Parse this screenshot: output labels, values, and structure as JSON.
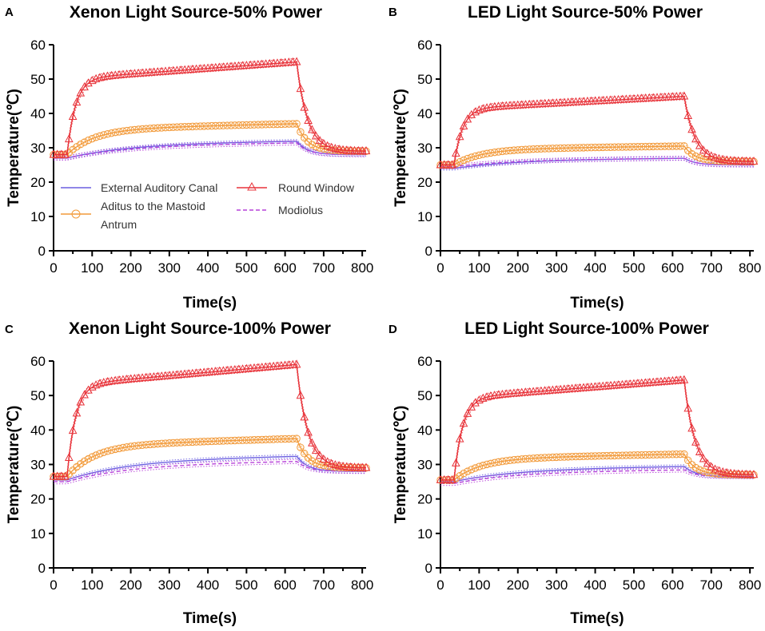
{
  "figure": {
    "description_panels": [
      "A",
      "B",
      "C",
      "D"
    ]
  },
  "colors": {
    "external_auditory_canal": "#6b5fe0",
    "aditus": "#f29a3a",
    "round_window": "#e8343b",
    "modiolus": "#b640d8",
    "axis": "#000000"
  },
  "legend": {
    "placement": "inside panel A, center-left",
    "entries": [
      {
        "key": "eac",
        "label": "External Auditory Canal",
        "marker": "line"
      },
      {
        "key": "rw",
        "label": "Round Window",
        "marker": "triangle"
      },
      {
        "key": "adi",
        "label_line1": "Aditus to the Mastoid",
        "label_line2": "Antrum",
        "marker": "circle"
      },
      {
        "key": "mod",
        "label": "Modiolus",
        "marker": "dashed"
      }
    ]
  },
  "chart_data": [
    {
      "panel": "A",
      "type": "line",
      "title": "Xenon Light Source-50% Power",
      "xlabel": "Time(s)",
      "ylabel": "Temperature(℃)",
      "xlim": [
        0,
        810
      ],
      "ylim": [
        0,
        60
      ],
      "xticks": [
        "0",
        "100",
        "200",
        "300",
        "400",
        "500",
        "600",
        "700",
        "800"
      ],
      "yticks": [
        "0",
        "10",
        "20",
        "30",
        "40",
        "50",
        "60"
      ],
      "baseline": {
        "eac": 27,
        "adi": 28,
        "rw": 28,
        "mod": 27
      },
      "plateau": {
        "eac": 32,
        "adi": 37,
        "rw": 55,
        "mod": 31.5
      },
      "final": {
        "eac": 28,
        "adi": 29,
        "rw": 29,
        "mod": 28
      },
      "has_legend": true
    },
    {
      "panel": "B",
      "type": "line",
      "title": "LED Light Source-50% Power",
      "xlabel": "Time(s)",
      "ylabel": "Temperature(℃)",
      "xlim": [
        0,
        810
      ],
      "ylim": [
        0,
        60
      ],
      "xticks": [
        "0",
        "100",
        "200",
        "300",
        "400",
        "500",
        "600",
        "700",
        "800"
      ],
      "yticks": [
        "0",
        "10",
        "20",
        "30",
        "40",
        "50",
        "60"
      ],
      "baseline": {
        "eac": 24,
        "adi": 25,
        "rw": 25,
        "mod": 24.5
      },
      "plateau": {
        "eac": 27,
        "adi": 30.5,
        "rw": 45,
        "mod": 27
      },
      "final": {
        "eac": 25,
        "adi": 26,
        "rw": 26,
        "mod": 25
      },
      "has_legend": false
    },
    {
      "panel": "C",
      "type": "line",
      "title": "Xenon Light Source-100% Power",
      "xlabel": "Time(s)",
      "ylabel": "Temperature(℃)",
      "xlim": [
        0,
        810
      ],
      "ylim": [
        0,
        60
      ],
      "xticks": [
        "0",
        "100",
        "200",
        "300",
        "400",
        "500",
        "600",
        "700",
        "800"
      ],
      "yticks": [
        "0",
        "10",
        "20",
        "30",
        "40",
        "50",
        "60"
      ],
      "baseline": {
        "eac": 25.5,
        "adi": 26.5,
        "rw": 26.5,
        "mod": 25
      },
      "plateau": {
        "eac": 32.5,
        "adi": 37.5,
        "rw": 59,
        "mod": 31
      },
      "final": {
        "eac": 28,
        "adi": 29,
        "rw": 29,
        "mod": 28
      },
      "has_legend": false
    },
    {
      "panel": "D",
      "type": "line",
      "title": "LED Light Source-100% Power",
      "xlabel": "Time(s)",
      "ylabel": "Temperature(℃)",
      "xlim": [
        0,
        810
      ],
      "ylim": [
        0,
        60
      ],
      "xticks": [
        "0",
        "100",
        "200",
        "300",
        "400",
        "500",
        "600",
        "700",
        "800"
      ],
      "yticks": [
        "0",
        "10",
        "20",
        "30",
        "40",
        "50",
        "60"
      ],
      "baseline": {
        "eac": 25,
        "adi": 25.5,
        "rw": 25.5,
        "mod": 24.5
      },
      "plateau": {
        "eac": 29.5,
        "adi": 33,
        "rw": 54.5,
        "mod": 28.5
      },
      "final": {
        "eac": 26.5,
        "adi": 27,
        "rw": 27,
        "mod": 26.5
      },
      "has_legend": false
    }
  ]
}
